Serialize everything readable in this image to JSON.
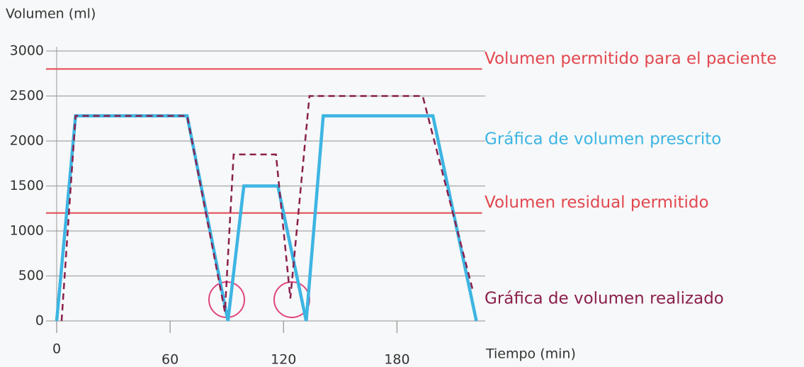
{
  "chart_data": {
    "type": "line",
    "y_label": "Volumen (ml)",
    "x_label": "Tiempo (min)",
    "xlim": [
      0,
      225
    ],
    "ylim": [
      0,
      3000
    ],
    "xticks": [
      0,
      60,
      120,
      180
    ],
    "yticks": [
      0,
      500,
      1000,
      1500,
      2000,
      2500,
      3000
    ],
    "grid": true,
    "series": [
      {
        "name": "Gráfica de volumen prescrito",
        "color": "#3db5e3",
        "dashed": false,
        "x": [
          0,
          10,
          69,
          90.6,
          99,
          117,
          132,
          141,
          199,
          222
        ],
        "values": [
          0,
          2280,
          2280,
          0,
          1500,
          1500,
          0,
          2280,
          2280,
          0
        ]
      },
      {
        "name": "Gráfica de volumen realizado",
        "color": "#8a1f4c",
        "dashed": true,
        "x": [
          2.6,
          10,
          69,
          89,
          93.6,
          116,
          123.6,
          133.7,
          193.6,
          220
        ],
        "values": [
          0,
          2280,
          2280,
          100,
          1850,
          1850,
          250,
          2500,
          2500,
          350
        ]
      }
    ],
    "reference_lines": [
      {
        "label": "Volumen permitido para el paciente",
        "value": 2800,
        "color": "#e2474f"
      },
      {
        "label": "Volumen residual permitido",
        "value": 1200,
        "color": "#e2474f"
      }
    ]
  }
}
